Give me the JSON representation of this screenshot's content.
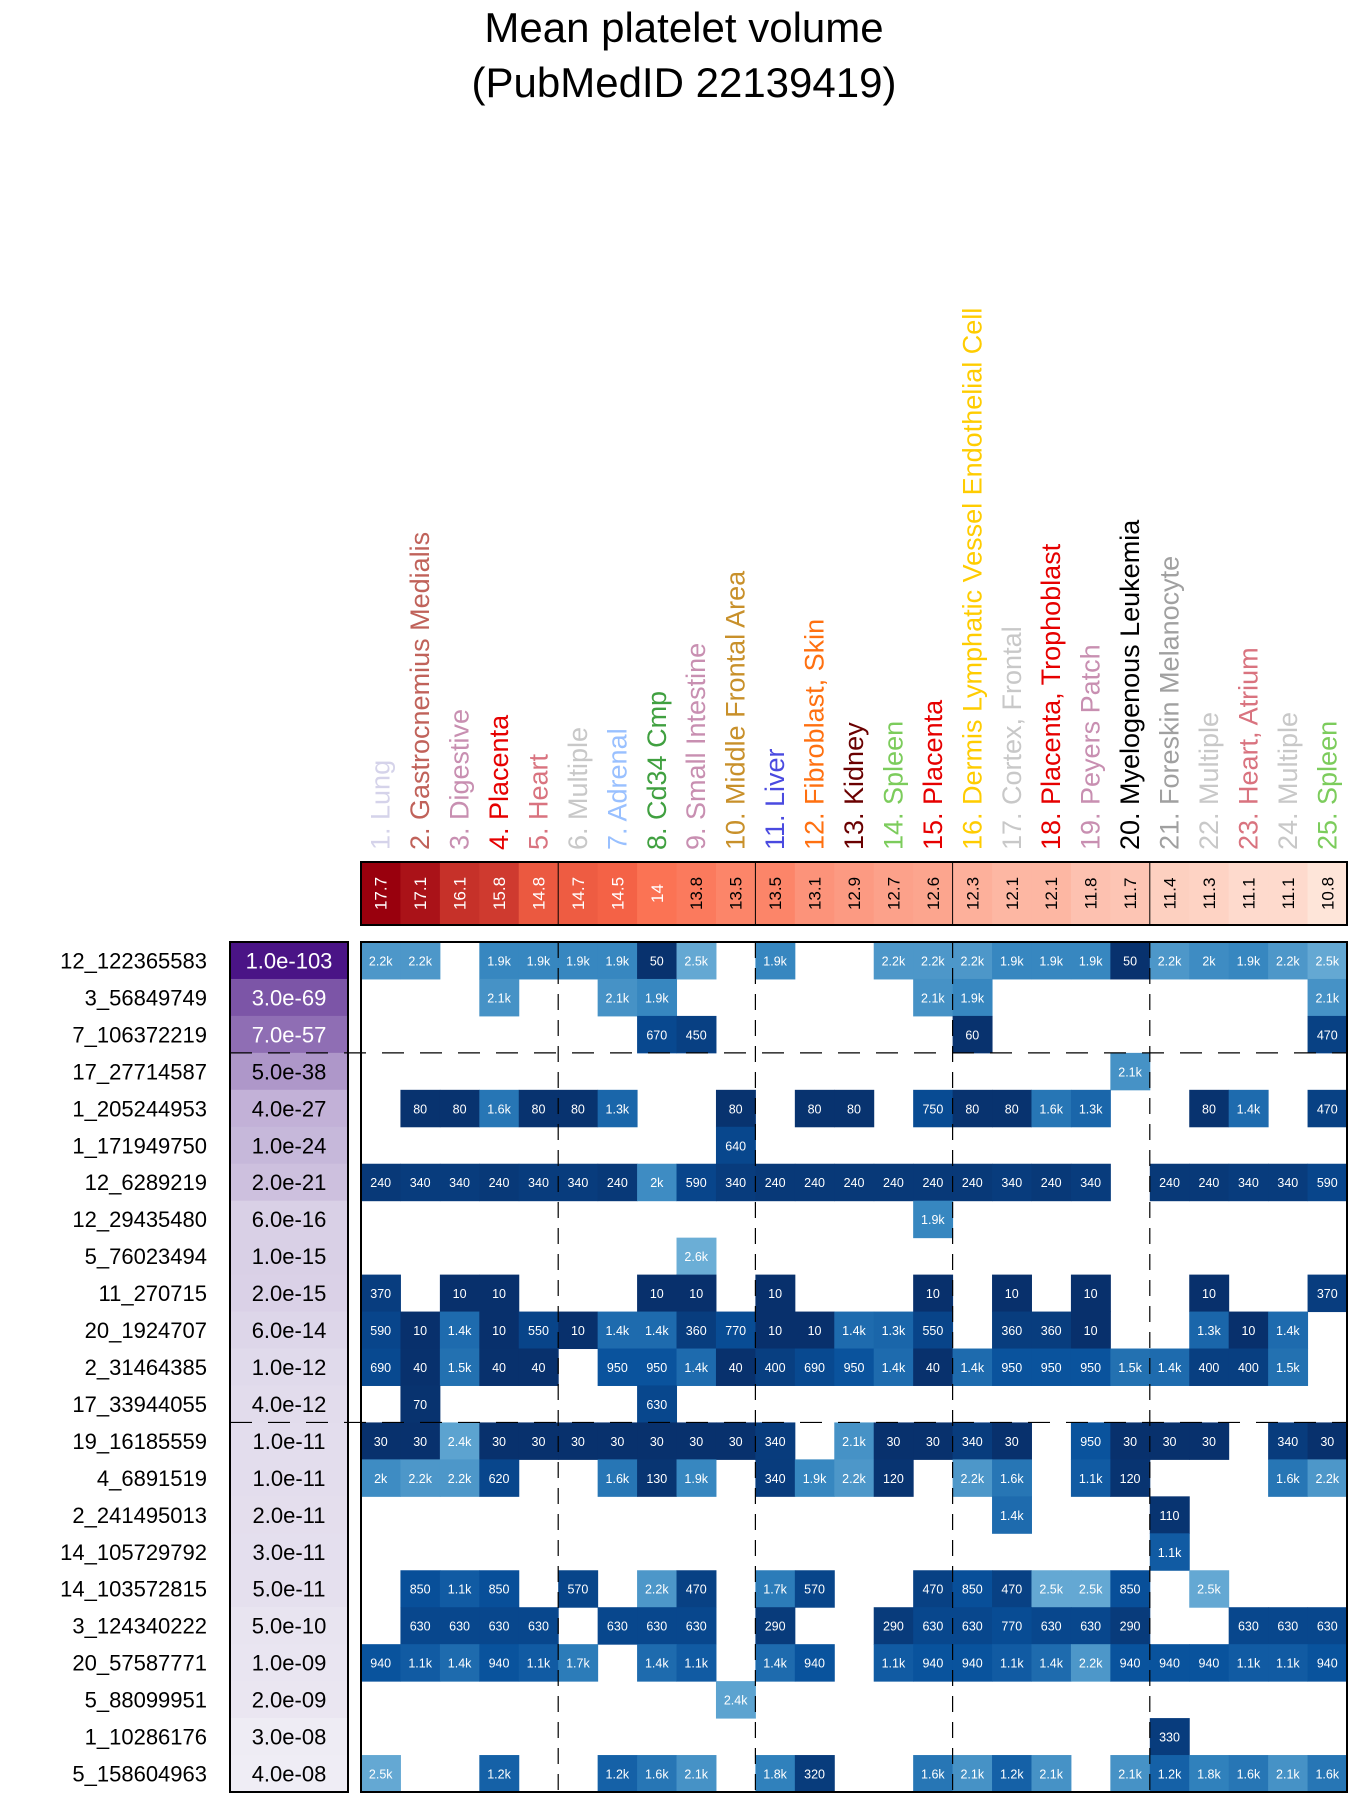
{
  "chart_data": {
    "type": "heatmap",
    "title": [
      "Mean platelet volume",
      "(PubMedID 22139419)"
    ],
    "columns": [
      {
        "label": "1. Lung",
        "color": "#d5d3ea",
        "score": "17.7"
      },
      {
        "label": "2. Gastrocnemius Medialis",
        "color": "#c0625a",
        "score": "17.1"
      },
      {
        "label": "3. Digestive",
        "color": "#c88fb1",
        "score": "16.1"
      },
      {
        "label": "4. Placenta",
        "color": "#e60000",
        "score": "15.8"
      },
      {
        "label": "5. Heart",
        "color": "#d9737f",
        "score": "14.8"
      },
      {
        "label": "6. Multiple",
        "color": "#c8c8c8",
        "score": "14.7"
      },
      {
        "label": "7. Adrenal",
        "color": "#99c0ff",
        "score": "14.5"
      },
      {
        "label": "8. Cd34 Cmp",
        "color": "#40a040",
        "score": "14"
      },
      {
        "label": "9. Small Intestine",
        "color": "#c88fb1",
        "score": "13.8"
      },
      {
        "label": "10. Middle Frontal Area",
        "color": "#c8902a",
        "score": "13.5"
      },
      {
        "label": "11. Liver",
        "color": "#4a4ae0",
        "score": "13.5"
      },
      {
        "label": "12. Fibroblast, Skin",
        "color": "#ff7010",
        "score": "13.1"
      },
      {
        "label": "13. Kidney",
        "color": "#6a0000",
        "score": "12.9"
      },
      {
        "label": "14. Spleen",
        "color": "#7ccc5c",
        "score": "12.7"
      },
      {
        "label": "15. Placenta",
        "color": "#e60000",
        "score": "12.6"
      },
      {
        "label": "16. Dermis Lymphatic Vessel Endothelial Cell",
        "color": "#ffcc00",
        "score": "12.3"
      },
      {
        "label": "17. Cortex, Frontal",
        "color": "#c8c8c8",
        "score": "12.1"
      },
      {
        "label": "18. Placenta, Trophoblast",
        "color": "#e60000",
        "score": "12.1"
      },
      {
        "label": "19. Peyers Patch",
        "color": "#c88fb1",
        "score": "11.8"
      },
      {
        "label": "20. Myelogenous Leukemia",
        "color": "#000000",
        "score": "11.7"
      },
      {
        "label": "21. Foreskin Melanocyte",
        "color": "#a0a0a0",
        "score": "11.4"
      },
      {
        "label": "22. Multiple",
        "color": "#c8c8c8",
        "score": "11.3"
      },
      {
        "label": "23. Heart, Atrium",
        "color": "#d9737f",
        "score": "11.1"
      },
      {
        "label": "24. Multiple",
        "color": "#c8c8c8",
        "score": "11.1"
      },
      {
        "label": "25. Spleen",
        "color": "#7ccc5c",
        "score": "10.8"
      }
    ],
    "score_range": [
      10.8,
      17.7
    ],
    "rows": [
      {
        "label": "12_122365583",
        "pvalue": "1.0e-103",
        "cells": [
          "2.2k",
          "2.2k",
          "",
          "1.9k",
          "1.9k",
          "1.9k",
          "1.9k",
          "50",
          "2.5k",
          "",
          "1.9k",
          "",
          "",
          "2.2k",
          "2.2k",
          "2.2k",
          "1.9k",
          "1.9k",
          "1.9k",
          "50",
          "2.2k",
          "2k",
          "1.9k",
          "2.2k",
          "2.5k"
        ]
      },
      {
        "label": "3_56849749",
        "pvalue": "3.0e-69",
        "cells": [
          "",
          "",
          "",
          "2.1k",
          "",
          "",
          "2.1k",
          "1.9k",
          "",
          "",
          "",
          "",
          "",
          "",
          "2.1k",
          "1.9k",
          "",
          "",
          "",
          "",
          "",
          "",
          "",
          "",
          "2.1k"
        ]
      },
      {
        "label": "7_106372219",
        "pvalue": "7.0e-57",
        "cells": [
          "",
          "",
          "",
          "",
          "",
          "",
          "",
          "670",
          "450",
          "",
          "",
          "",
          "",
          "",
          "",
          "60",
          "",
          "",
          "",
          "",
          "",
          "",
          "",
          "",
          "470"
        ]
      },
      {
        "label": "17_27714587",
        "pvalue": "5.0e-38",
        "cells": [
          "",
          "",
          "",
          "",
          "",
          "",
          "",
          "",
          "",
          "",
          "",
          "",
          "",
          "",
          "",
          "",
          "",
          "",
          "",
          "2.1k",
          "",
          "",
          "",
          "",
          ""
        ]
      },
      {
        "label": "1_205244953",
        "pvalue": "4.0e-27",
        "cells": [
          "",
          "80",
          "80",
          "1.6k",
          "80",
          "80",
          "1.3k",
          "",
          "",
          "80",
          "",
          "80",
          "80",
          "",
          "750",
          "80",
          "80",
          "1.6k",
          "1.3k",
          "",
          "",
          "80",
          "1.4k",
          "",
          "470"
        ]
      },
      {
        "label": "1_171949750",
        "pvalue": "1.0e-24",
        "cells": [
          "",
          "",
          "",
          "",
          "",
          "",
          "",
          "",
          "",
          "640",
          "",
          "",
          "",
          "",
          "",
          "",
          "",
          "",
          "",
          "",
          "",
          "",
          "",
          "",
          ""
        ]
      },
      {
        "label": "12_6289219",
        "pvalue": "2.0e-21",
        "cells": [
          "240",
          "340",
          "340",
          "240",
          "340",
          "340",
          "240",
          "2k",
          "590",
          "340",
          "240",
          "240",
          "240",
          "240",
          "240",
          "240",
          "340",
          "240",
          "340",
          "",
          "240",
          "240",
          "340",
          "340",
          "590"
        ]
      },
      {
        "label": "12_29435480",
        "pvalue": "6.0e-16",
        "cells": [
          "",
          "",
          "",
          "",
          "",
          "",
          "",
          "",
          "",
          "",
          "",
          "",
          "",
          "",
          "1.9k",
          "",
          "",
          "",
          "",
          "",
          "",
          "",
          "",
          "",
          ""
        ]
      },
      {
        "label": "5_76023494",
        "pvalue": "1.0e-15",
        "cells": [
          "",
          "",
          "",
          "",
          "",
          "",
          "",
          "",
          "2.6k",
          "",
          "",
          "",
          "",
          "",
          "",
          "",
          "",
          "",
          "",
          "",
          "",
          "",
          "",
          "",
          ""
        ]
      },
      {
        "label": "11_270715",
        "pvalue": "2.0e-15",
        "cells": [
          "370",
          "",
          "10",
          "10",
          "",
          "",
          "",
          "10",
          "10",
          "",
          "10",
          "",
          "",
          "",
          "10",
          "",
          "10",
          "",
          "10",
          "",
          "",
          "10",
          "",
          "",
          "370"
        ]
      },
      {
        "label": "20_1924707",
        "pvalue": "6.0e-14",
        "cells": [
          "590",
          "10",
          "1.4k",
          "10",
          "550",
          "10",
          "1.4k",
          "1.4k",
          "360",
          "770",
          "10",
          "10",
          "1.4k",
          "1.3k",
          "550",
          "",
          "360",
          "360",
          "10",
          "",
          "",
          "1.3k",
          "10",
          "1.4k",
          ""
        ]
      },
      {
        "label": "2_31464385",
        "pvalue": "1.0e-12",
        "cells": [
          "690",
          "40",
          "1.5k",
          "40",
          "40",
          "",
          "950",
          "950",
          "1.4k",
          "40",
          "400",
          "690",
          "950",
          "1.4k",
          "40",
          "1.4k",
          "950",
          "950",
          "950",
          "1.5k",
          "1.4k",
          "400",
          "400",
          "1.5k",
          ""
        ]
      },
      {
        "label": "17_33944055",
        "pvalue": "4.0e-12",
        "cells": [
          "",
          "70",
          "",
          "",
          "",
          "",
          "",
          "630",
          "",
          "",
          "",
          "",
          "",
          "",
          "",
          "",
          "",
          "",
          "",
          "",
          "",
          "",
          "",
          "",
          ""
        ]
      },
      {
        "label": "19_16185559",
        "pvalue": "1.0e-11",
        "cells": [
          "30",
          "30",
          "2.4k",
          "30",
          "30",
          "30",
          "30",
          "30",
          "30",
          "30",
          "340",
          "",
          "2.1k",
          "30",
          "30",
          "340",
          "30",
          "",
          "950",
          "30",
          "30",
          "30",
          "",
          "340",
          "30"
        ]
      },
      {
        "label": "4_6891519",
        "pvalue": "1.0e-11",
        "cells": [
          "2k",
          "2.2k",
          "2.2k",
          "620",
          "",
          "",
          "1.6k",
          "130",
          "1.9k",
          "",
          "340",
          "1.9k",
          "2.2k",
          "120",
          "",
          "2.2k",
          "1.6k",
          "",
          "1.1k",
          "120",
          "",
          "",
          "",
          "1.6k",
          "2.2k"
        ]
      },
      {
        "label": "2_241495013",
        "pvalue": "2.0e-11",
        "cells": [
          "",
          "",
          "",
          "",
          "",
          "",
          "",
          "",
          "",
          "",
          "",
          "",
          "",
          "",
          "",
          "",
          "1.4k",
          "",
          "",
          "",
          "110",
          "",
          "",
          "",
          ""
        ]
      },
      {
        "label": "14_105729792",
        "pvalue": "3.0e-11",
        "cells": [
          "",
          "",
          "",
          "",
          "",
          "",
          "",
          "",
          "",
          "",
          "",
          "",
          "",
          "",
          "",
          "",
          "",
          "",
          "",
          "",
          "1.1k",
          "",
          "",
          "",
          ""
        ]
      },
      {
        "label": "14_103572815",
        "pvalue": "5.0e-11",
        "cells": [
          "",
          "850",
          "1.1k",
          "850",
          "",
          "570",
          "",
          "2.2k",
          "470",
          "",
          "1.7k",
          "570",
          "",
          "",
          "470",
          "850",
          "470",
          "2.5k",
          "2.5k",
          "850",
          "",
          "2.5k",
          "",
          "",
          ""
        ]
      },
      {
        "label": "3_124340222",
        "pvalue": "5.0e-10",
        "cells": [
          "",
          "630",
          "630",
          "630",
          "630",
          "",
          "630",
          "630",
          "630",
          "",
          "290",
          "",
          "",
          "290",
          "630",
          "630",
          "770",
          "630",
          "630",
          "290",
          "",
          "",
          "630",
          "630",
          "630"
        ]
      },
      {
        "label": "20_57587771",
        "pvalue": "1.0e-09",
        "cells": [
          "940",
          "1.1k",
          "1.4k",
          "940",
          "1.1k",
          "1.7k",
          "",
          "1.4k",
          "1.1k",
          "",
          "1.4k",
          "940",
          "",
          "1.1k",
          "940",
          "940",
          "1.1k",
          "1.4k",
          "2.2k",
          "940",
          "940",
          "940",
          "1.1k",
          "1.1k",
          "940"
        ]
      },
      {
        "label": "5_88099951",
        "pvalue": "2.0e-09",
        "cells": [
          "",
          "",
          "",
          "",
          "",
          "",
          "",
          "",
          "",
          "2.4k",
          "",
          "",
          "",
          "",
          "",
          "",
          "",
          "",
          "",
          "",
          "",
          "",
          "",
          "",
          ""
        ]
      },
      {
        "label": "1_10286176",
        "pvalue": "3.0e-08",
        "cells": [
          "",
          "",
          "",
          "",
          "",
          "",
          "",
          "",
          "",
          "",
          "",
          "",
          "",
          "",
          "",
          "",
          "",
          "",
          "",
          "",
          "330",
          "",
          "",
          "",
          ""
        ]
      },
      {
        "label": "5_158604963",
        "pvalue": "4.0e-08",
        "cells": [
          "2.5k",
          "",
          "",
          "1.2k",
          "",
          "",
          "1.2k",
          "1.6k",
          "2.1k",
          "",
          "1.8k",
          "320",
          "",
          "",
          "1.6k",
          "2.1k",
          "1.2k",
          "2.1k",
          "",
          "2.1k",
          "1.2k",
          "1.8k",
          "1.6k",
          "2.1k",
          "1.6k"
        ]
      }
    ],
    "column_group_breaks_after": [
      5,
      10,
      15,
      20
    ],
    "row_group_breaks_after": [
      3,
      13
    ],
    "colors": {
      "score_high": "#99000d",
      "score_low": "#fee5d9",
      "pvalue_strongest": "#4a1486",
      "pvalue_weakest": "#efedf5",
      "cell_low_value": "#08306b",
      "cell_high_value": "#6baed6"
    }
  }
}
